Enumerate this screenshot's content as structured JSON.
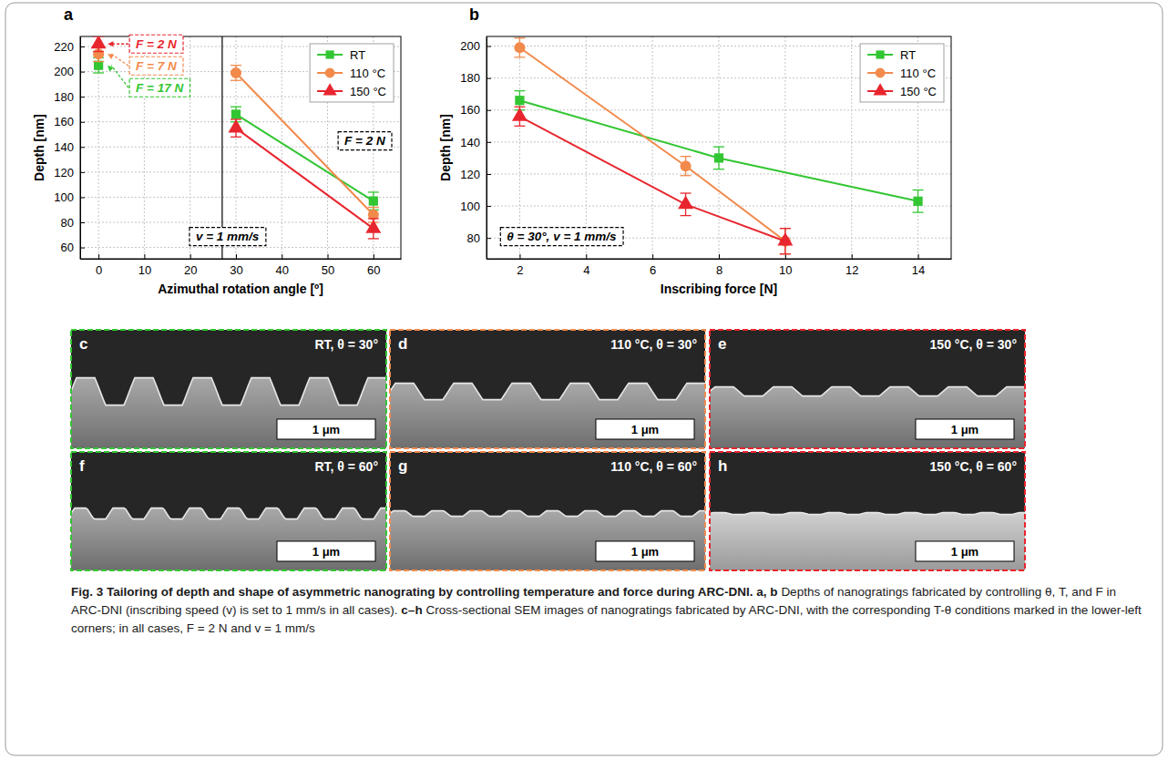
{
  "chart_data": [
    {
      "type": "line",
      "panel": "a",
      "x_label": "Azimuthal rotation angle [º]",
      "y_label": "Depth [nm]",
      "xlim": [
        -4,
        66
      ],
      "xticks": [
        0,
        10,
        20,
        30,
        40,
        50,
        60
      ],
      "ylim": [
        51,
        228
      ],
      "yticks": [
        60,
        80,
        100,
        120,
        140,
        160,
        180,
        200,
        220
      ],
      "grid": true,
      "legend": "top-right",
      "divider_x": 27,
      "series": [
        {
          "name": "RT",
          "color": "#33c633",
          "marker": "square",
          "x": [
            0,
            30,
            60
          ],
          "values": [
            205,
            166,
            97
          ],
          "errors": [
            6,
            6,
            7
          ]
        },
        {
          "name": "110 °C",
          "color": "#f28a4c",
          "marker": "circle",
          "x": [
            0,
            30,
            60
          ],
          "values": [
            214,
            199,
            86
          ],
          "errors": [
            6,
            6,
            6
          ]
        },
        {
          "name": "150 °C",
          "color": "#e8262f",
          "marker": "triangle",
          "x": [
            0,
            30,
            60
          ],
          "values": [
            222,
            155,
            75
          ],
          "errors": [
            6,
            7,
            8
          ]
        }
      ],
      "annotations": [
        {
          "text": "F = 2 N",
          "series": 2
        },
        {
          "text": "F = 7 N",
          "series": 1
        },
        {
          "text": "F = 17 N",
          "series": 0
        },
        {
          "text": "F = 2 N"
        },
        {
          "text": "v = 1 mm/s"
        }
      ]
    },
    {
      "type": "line",
      "panel": "b",
      "x_label": "Inscribing force [N]",
      "y_label": "Depth [nm]",
      "xlim": [
        1,
        15
      ],
      "xticks": [
        2,
        4,
        6,
        8,
        10,
        12,
        14
      ],
      "ylim": [
        67,
        206
      ],
      "yticks": [
        80,
        100,
        120,
        140,
        160,
        180,
        200
      ],
      "grid": true,
      "legend": "top-right",
      "series": [
        {
          "name": "RT",
          "color": "#33c633",
          "marker": "square",
          "x": [
            2,
            8,
            14
          ],
          "values": [
            166,
            130,
            103
          ],
          "errors": [
            6,
            7,
            7
          ]
        },
        {
          "name": "110 °C",
          "color": "#f28a4c",
          "marker": "circle",
          "x": [
            2,
            7,
            10
          ],
          "values": [
            199,
            125,
            78
          ],
          "errors": [
            6,
            6,
            8
          ]
        },
        {
          "name": "150 °C",
          "color": "#e8262f",
          "marker": "triangle",
          "x": [
            2,
            7,
            10
          ],
          "values": [
            156,
            101,
            78
          ],
          "errors": [
            6,
            7,
            8
          ]
        }
      ],
      "annotations": [
        {
          "text": "θ = 30°, v = 1 mm/s"
        }
      ]
    }
  ],
  "panels": [
    {
      "letter": "c",
      "label": "RT, θ = 30°",
      "scale_bar": "1 μm",
      "color": "#33c633"
    },
    {
      "letter": "d",
      "label": "110 °C, θ = 30°",
      "scale_bar": "1 μm",
      "color": "#f28a4c"
    },
    {
      "letter": "e",
      "label": "150 °C, θ = 30°",
      "scale_bar": "1 μm",
      "color": "#e8262f"
    },
    {
      "letter": "f",
      "label": "RT, θ = 60°",
      "scale_bar": "1 μm",
      "color": "#33c633"
    },
    {
      "letter": "g",
      "label": "110 °C, θ = 60°",
      "scale_bar": "1 μm",
      "color": "#f28a4c"
    },
    {
      "letter": "h",
      "label": "150 °C, θ = 60°",
      "scale_bar": "1 μm",
      "color": "#e8262f"
    }
  ],
  "caption": {
    "title": "Fig. 3 Tailoring of depth and shape of asymmetric nanograting by controlling temperature and force during ARC-DNI.",
    "parts": [
      {
        "label": "a, b",
        "text": "Depths of nanogratings fabricated by controlling θ, T, and F in ARC-DNI (inscribing speed (v) is set to 1 mm/s in all cases)."
      },
      {
        "label": "c–h",
        "text": "Cross-sectional SEM images of nanogratings fabricated by ARC-DNI, with the corresponding T-θ conditions marked in the lower-left corners; in all cases, F = 2 N and v = 1 mm/s"
      }
    ]
  }
}
